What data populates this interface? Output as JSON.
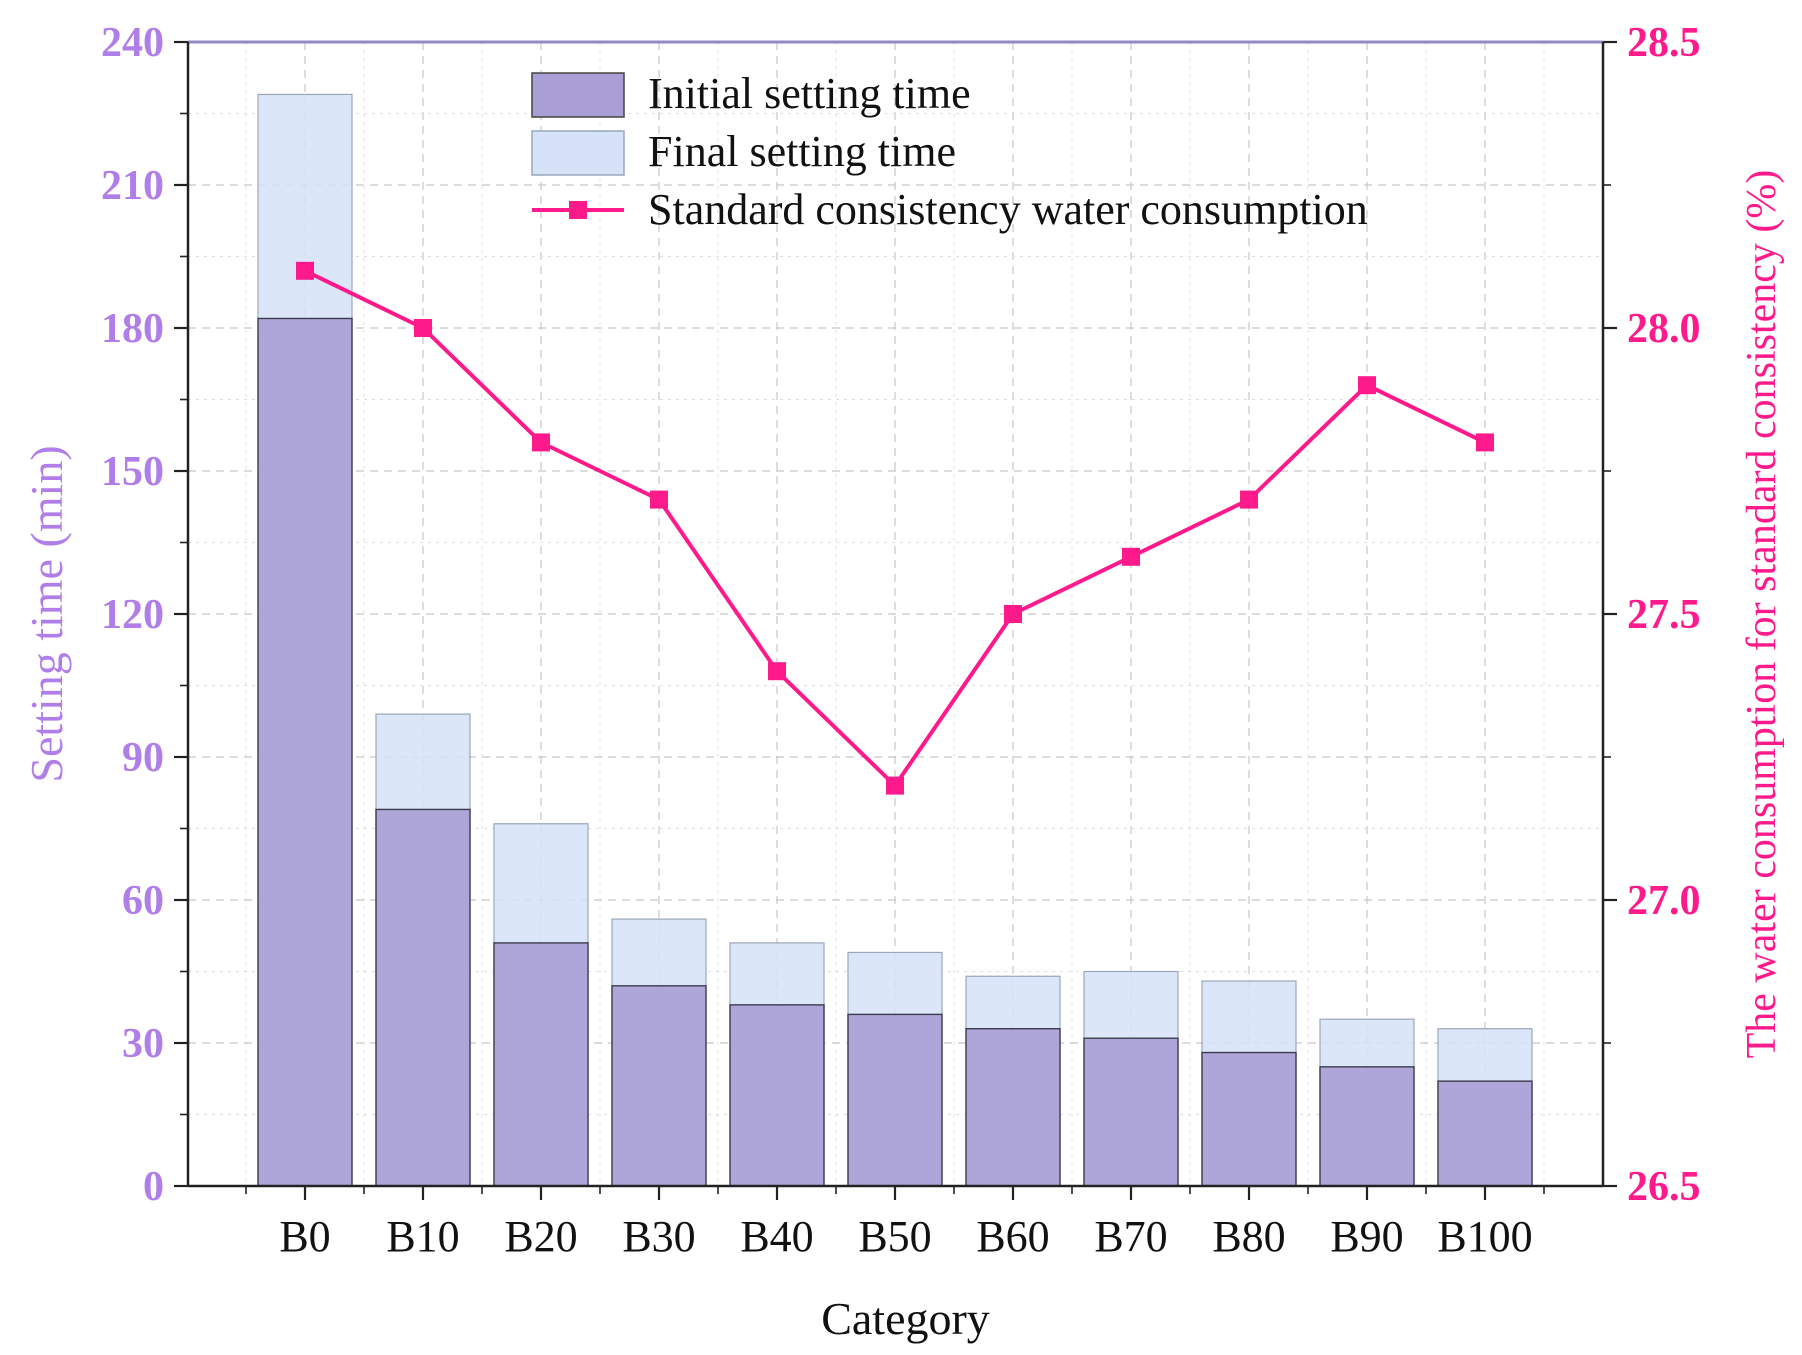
{
  "chart_data": {
    "type": "bar",
    "title": "",
    "xlabel": "Category",
    "ylabel": "Setting time (min)",
    "y2label": "The water consumption for standard consistency (%)",
    "categories": [
      "B0",
      "B10",
      "B20",
      "B30",
      "B40",
      "B50",
      "B60",
      "B70",
      "B80",
      "B90",
      "B100"
    ],
    "ylim": [
      0,
      240
    ],
    "yticks": [
      0,
      30,
      60,
      90,
      120,
      150,
      180,
      210,
      240
    ],
    "y2lim": [
      26.5,
      28.5
    ],
    "y2ticks": [
      "26.5",
      "27.0",
      "27.5",
      "28.0",
      "28.5"
    ],
    "grid": true,
    "legend_position": "top",
    "series": [
      {
        "name": "Initial setting time",
        "kind": "bar",
        "axis": "left",
        "color": "#a99fd6",
        "values": [
          182,
          79,
          51,
          42,
          38,
          36,
          33,
          31,
          28,
          25,
          22
        ]
      },
      {
        "name": "Final setting time",
        "kind": "bar",
        "axis": "left",
        "color": "#d6e2f8",
        "values": [
          229,
          99,
          76,
          56,
          51,
          49,
          44,
          45,
          43,
          35,
          33
        ]
      },
      {
        "name": "Standard consistency water consumption",
        "kind": "line",
        "axis": "right",
        "color": "#ff1a8c",
        "values": [
          28.1,
          28.0,
          27.8,
          27.7,
          27.4,
          27.2,
          27.5,
          27.6,
          27.7,
          27.9,
          27.8
        ]
      }
    ],
    "colors": {
      "left_axis": "#b07ee8",
      "right_axis": "#ff1a8c",
      "axis_line": "#222222",
      "grid": "#c8c8c8"
    }
  }
}
